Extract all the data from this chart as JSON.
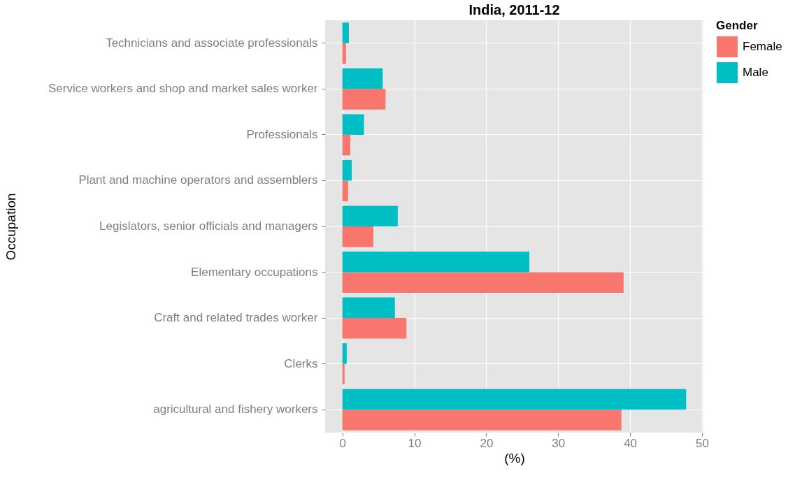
{
  "chart_data": {
    "type": "bar",
    "orientation": "horizontal",
    "title": "India, 2011-12",
    "xlabel": "(%)",
    "ylabel": "Occupation",
    "legend_title": "Gender",
    "legend": "right",
    "grid": true,
    "categories": [
      "Technicians and associate professionals",
      "Service workers and shop and market sales worker",
      "Professionals",
      "Plant and machine operators and assemblers",
      "Legislators, senior officials and managers",
      "Elementary occupations",
      "Craft and related trades worker",
      "Clerks",
      "agricultural and fishery workers"
    ],
    "series": [
      {
        "name": "Female",
        "color": "#f8766d",
        "values": [
          0.5,
          6.0,
          1.1,
          0.8,
          4.3,
          39.1,
          8.9,
          0.3,
          38.8
        ]
      },
      {
        "name": "Male",
        "color": "#00bfc4",
        "values": [
          0.9,
          5.6,
          3.0,
          1.3,
          7.7,
          26.0,
          7.3,
          0.6,
          47.8
        ]
      }
    ],
    "xlim": [
      -2.4,
      50.2
    ],
    "xticks": [
      0,
      10,
      20,
      30,
      40,
      50
    ]
  }
}
